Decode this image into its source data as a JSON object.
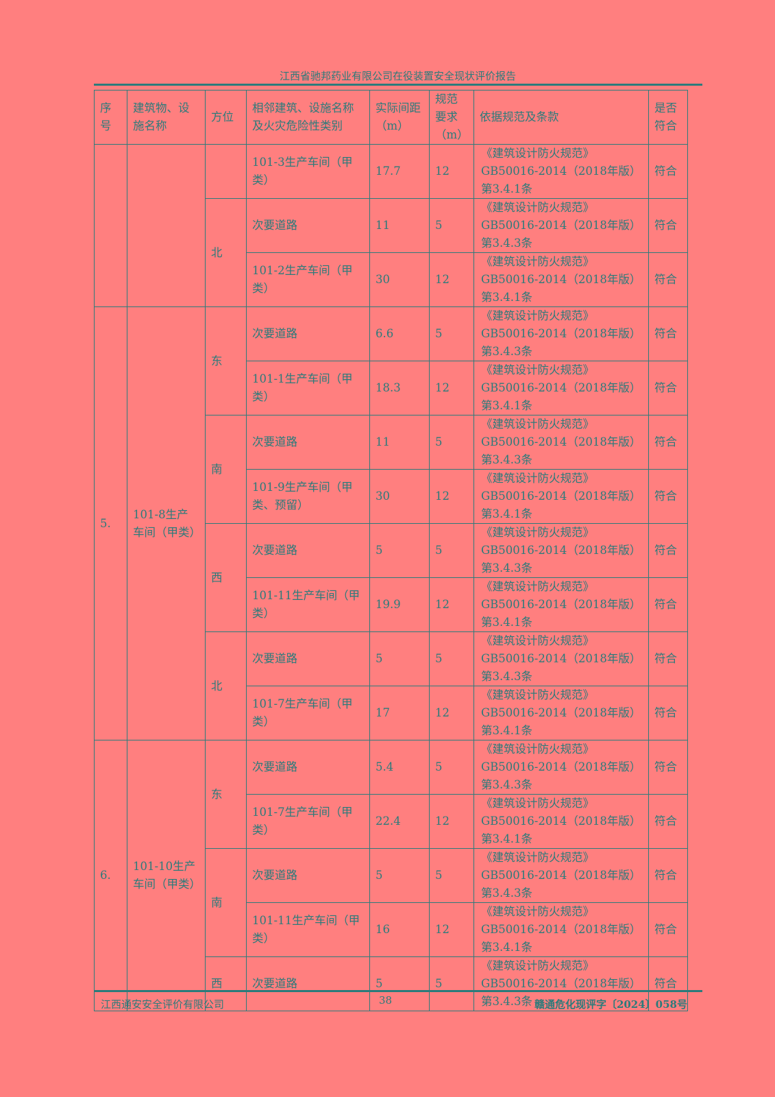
{
  "header": {
    "title": "江西省驰邦药业有限公司在役装置安全现状评价报告"
  },
  "table": {
    "columns": [
      "序号",
      "建筑物、设施名称",
      "方位",
      "相邻建筑、设施名称及火灾危险性类别",
      "实际间距（m）",
      "规范要求（m）",
      "依据规范及条款",
      "是否符合"
    ],
    "groups": [
      {
        "seq": "",
        "name": "",
        "directions": [
          {
            "dir": "",
            "rows": [
              {
                "neighbor": "101-3生产车间（甲类）",
                "actual": "17.7",
                "required": "12",
                "basis_title": "《建筑设计防火规范》",
                "basis_code": "GB50016-2014（2018年版）",
                "basis_clause": "第3.4.1条",
                "result": "符合"
              }
            ]
          },
          {
            "dir": "北",
            "rows": [
              {
                "neighbor": "次要道路",
                "actual": "11",
                "required": "5",
                "basis_title": "《建筑设计防火规范》",
                "basis_code": "GB50016-2014（2018年版）",
                "basis_clause": "第3.4.3条",
                "result": "符合"
              },
              {
                "neighbor": "101-2生产车间（甲类）",
                "actual": "30",
                "required": "12",
                "basis_title": "《建筑设计防火规范》",
                "basis_code": "GB50016-2014（2018年版）",
                "basis_clause": "第3.4.1条",
                "result": "符合"
              }
            ]
          }
        ]
      },
      {
        "seq": "5.",
        "name": "101-8生产车间（甲类）",
        "directions": [
          {
            "dir": "东",
            "rows": [
              {
                "neighbor": "次要道路",
                "actual": "6.6",
                "required": "5",
                "basis_title": "《建筑设计防火规范》",
                "basis_code": "GB50016-2014（2018年版）",
                "basis_clause": "第3.4.3条",
                "result": "符合"
              },
              {
                "neighbor": "101-1生产车间（甲类）",
                "actual": "18.3",
                "required": "12",
                "basis_title": "《建筑设计防火规范》",
                "basis_code": "GB50016-2014（2018年版）",
                "basis_clause": "第3.4.1条",
                "result": "符合"
              }
            ]
          },
          {
            "dir": "南",
            "rows": [
              {
                "neighbor": "次要道路",
                "actual": "11",
                "required": "5",
                "basis_title": "《建筑设计防火规范》",
                "basis_code": "GB50016-2014（2018年版）",
                "basis_clause": "第3.4.3条",
                "result": "符合"
              },
              {
                "neighbor": "101-9生产车间（甲类、预留）",
                "actual": "30",
                "required": "12",
                "basis_title": "《建筑设计防火规范》",
                "basis_code": "GB50016-2014（2018年版）",
                "basis_clause": "第3.4.1条",
                "result": "符合"
              }
            ]
          },
          {
            "dir": "西",
            "rows": [
              {
                "neighbor": "次要道路",
                "actual": "5",
                "required": "5",
                "basis_title": "《建筑设计防火规范》",
                "basis_code": "GB50016-2014（2018年版）",
                "basis_clause": "第3.4.3条",
                "result": "符合"
              },
              {
                "neighbor": "101-11生产车间（甲类）",
                "actual": "19.9",
                "required": "12",
                "basis_title": "《建筑设计防火规范》",
                "basis_code": "GB50016-2014（2018年版）",
                "basis_clause": "第3.4.1条",
                "result": "符合"
              }
            ]
          },
          {
            "dir": "北",
            "rows": [
              {
                "neighbor": "次要道路",
                "actual": "5",
                "required": "5",
                "basis_title": "《建筑设计防火规范》",
                "basis_code": "GB50016-2014（2018年版）",
                "basis_clause": "第3.4.3条",
                "result": "符合"
              },
              {
                "neighbor": "101-7生产车间（甲类）",
                "actual": "17",
                "required": "12",
                "basis_title": "《建筑设计防火规范》",
                "basis_code": "GB50016-2014（2018年版）",
                "basis_clause": "第3.4.1条",
                "result": "符合"
              }
            ]
          }
        ]
      },
      {
        "seq": "6.",
        "name": "101-10生产车间（甲类）",
        "directions": [
          {
            "dir": "东",
            "rows": [
              {
                "neighbor": "次要道路",
                "actual": "5.4",
                "required": "5",
                "basis_title": "《建筑设计防火规范》",
                "basis_code": "GB50016-2014（2018年版）",
                "basis_clause": "第3.4.3条",
                "result": "符合"
              },
              {
                "neighbor": "101-7生产车间（甲类）",
                "actual": "22.4",
                "required": "12",
                "basis_title": "《建筑设计防火规范》",
                "basis_code": "GB50016-2014（2018年版）",
                "basis_clause": "第3.4.1条",
                "result": "符合"
              }
            ]
          },
          {
            "dir": "南",
            "rows": [
              {
                "neighbor": "次要道路",
                "actual": "5",
                "required": "5",
                "basis_title": "《建筑设计防火规范》",
                "basis_code": "GB50016-2014（2018年版）",
                "basis_clause": "第3.4.3条",
                "result": "符合"
              },
              {
                "neighbor": "101-11生产车间（甲类）",
                "actual": "16",
                "required": "12",
                "basis_title": "《建筑设计防火规范》",
                "basis_code": "GB50016-2014（2018年版）",
                "basis_clause": "第3.4.1条",
                "result": "符合"
              }
            ]
          },
          {
            "dir": "西",
            "rows": [
              {
                "neighbor": "次要道路",
                "actual": "5",
                "required": "5",
                "basis_title": "《建筑设计防火规范》",
                "basis_code": "GB50016-2014（2018年版）",
                "basis_clause": "第3.4.3条",
                "result": "符合"
              }
            ]
          }
        ]
      }
    ]
  },
  "footer": {
    "company": "江西通安安全评价有限公司",
    "page": "38",
    "doc_number": "赣通危化现评字〔2024〕058号"
  },
  "colors": {
    "background": "#ff7f7f",
    "text": "#2b7b7b"
  }
}
